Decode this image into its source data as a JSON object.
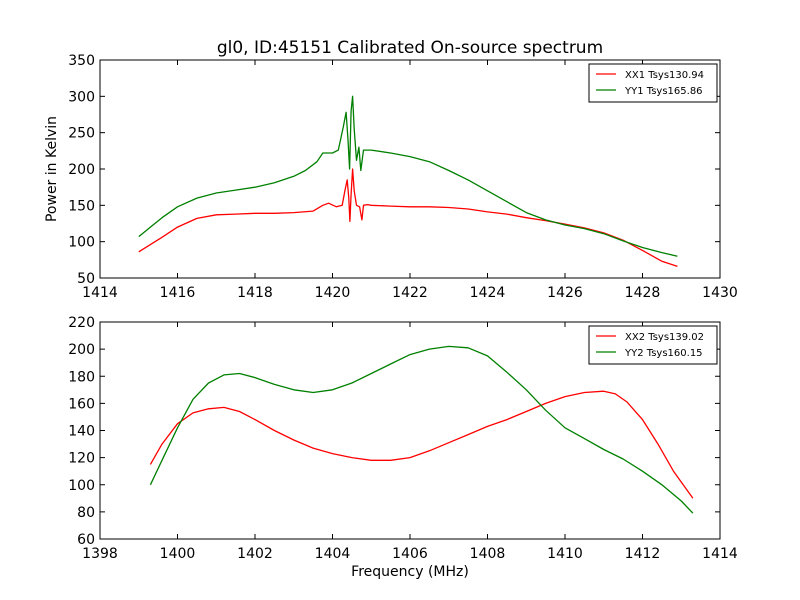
{
  "figure": {
    "title": "gl0, ID:45151 Calibrated On-source spectrum",
    "xlabel": "Frequency (MHz)",
    "ylabel": "Power in Kelvin"
  },
  "chart_data": [
    {
      "type": "line",
      "xlim": [
        1414,
        1430
      ],
      "ylim": [
        50,
        350
      ],
      "xticks": [
        1414,
        1416,
        1418,
        1420,
        1422,
        1424,
        1426,
        1428,
        1430
      ],
      "yticks": [
        50,
        100,
        150,
        200,
        250,
        300,
        350
      ],
      "legend_position": "top-right",
      "series": [
        {
          "name": "XX1 Tsys130.94",
          "color": "#ff0000",
          "x": [
            1415.0,
            1415.3,
            1415.6,
            1416.0,
            1416.5,
            1417.0,
            1417.5,
            1418.0,
            1418.5,
            1419.0,
            1419.5,
            1419.75,
            1419.9,
            1420.1,
            1420.25,
            1420.32,
            1420.38,
            1420.42,
            1420.45,
            1420.48,
            1420.52,
            1420.56,
            1420.62,
            1420.7,
            1420.76,
            1420.8,
            1420.9,
            1421.0,
            1421.5,
            1422.0,
            1422.5,
            1423.0,
            1423.5,
            1424.0,
            1424.5,
            1425.0,
            1425.5,
            1426.0,
            1426.5,
            1427.0,
            1427.5,
            1428.0,
            1428.5,
            1428.9
          ],
          "y": [
            86,
            96,
            106,
            120,
            132,
            137,
            138,
            139,
            139,
            140,
            142,
            150,
            153,
            148,
            150,
            170,
            185,
            160,
            128,
            165,
            200,
            170,
            150,
            148,
            130,
            150,
            151,
            150,
            149,
            148,
            148,
            147,
            145,
            141,
            138,
            133,
            129,
            124,
            119,
            112,
            102,
            88,
            73,
            66
          ]
        },
        {
          "name": "YY1 Tsys165.86",
          "color": "#008000",
          "x": [
            1415.0,
            1415.3,
            1415.6,
            1416.0,
            1416.5,
            1417.0,
            1417.5,
            1418.0,
            1418.5,
            1419.0,
            1419.3,
            1419.6,
            1419.75,
            1420.0,
            1420.15,
            1420.28,
            1420.35,
            1420.4,
            1420.44,
            1420.48,
            1420.52,
            1420.56,
            1420.62,
            1420.68,
            1420.73,
            1420.8,
            1421.0,
            1421.5,
            1422.0,
            1422.5,
            1423.0,
            1423.5,
            1424.0,
            1424.5,
            1425.0,
            1425.5,
            1426.0,
            1426.5,
            1427.0,
            1427.5,
            1428.0,
            1428.5,
            1428.9
          ],
          "y": [
            107,
            120,
            133,
            148,
            160,
            167,
            171,
            175,
            181,
            190,
            198,
            210,
            222,
            222,
            226,
            258,
            278,
            240,
            200,
            280,
            300,
            255,
            212,
            230,
            198,
            226,
            226,
            222,
            217,
            210,
            198,
            185,
            170,
            155,
            140,
            130,
            123,
            118,
            111,
            101,
            92,
            85,
            80
          ]
        }
      ]
    },
    {
      "type": "line",
      "xlim": [
        1398,
        1414
      ],
      "ylim": [
        60,
        220
      ],
      "xticks": [
        1398,
        1400,
        1402,
        1404,
        1406,
        1408,
        1410,
        1412,
        1414
      ],
      "yticks": [
        60,
        80,
        100,
        120,
        140,
        160,
        180,
        200,
        220
      ],
      "legend_position": "top-right",
      "series": [
        {
          "name": "XX2 Tsys139.02",
          "color": "#ff0000",
          "x": [
            1399.3,
            1399.6,
            1400.0,
            1400.4,
            1400.8,
            1401.2,
            1401.6,
            1402.0,
            1402.5,
            1403.0,
            1403.5,
            1404.0,
            1404.5,
            1405.0,
            1405.5,
            1406.0,
            1406.5,
            1407.0,
            1407.5,
            1408.0,
            1408.5,
            1409.0,
            1409.5,
            1410.0,
            1410.5,
            1411.0,
            1411.3,
            1411.6,
            1412.0,
            1412.4,
            1412.8,
            1413.3
          ],
          "y": [
            115,
            130,
            145,
            153,
            156,
            157,
            154,
            148,
            140,
            133,
            127,
            123,
            120,
            118,
            118,
            120,
            125,
            131,
            137,
            143,
            148,
            154,
            160,
            165,
            168,
            169,
            167,
            161,
            148,
            130,
            110,
            90
          ]
        },
        {
          "name": "YY2 Tsys160.15",
          "color": "#008000",
          "x": [
            1399.3,
            1399.6,
            1400.0,
            1400.4,
            1400.8,
            1401.2,
            1401.6,
            1402.0,
            1402.5,
            1403.0,
            1403.5,
            1404.0,
            1404.5,
            1405.0,
            1405.5,
            1406.0,
            1406.5,
            1407.0,
            1407.5,
            1408.0,
            1408.5,
            1409.0,
            1409.5,
            1410.0,
            1410.5,
            1411.0,
            1411.5,
            1412.0,
            1412.5,
            1413.0,
            1413.3
          ],
          "y": [
            100,
            118,
            142,
            163,
            175,
            181,
            182,
            179,
            174,
            170,
            168,
            170,
            175,
            182,
            189,
            196,
            200,
            202,
            201,
            195,
            183,
            170,
            155,
            142,
            134,
            126,
            119,
            110,
            100,
            88,
            79
          ]
        }
      ]
    }
  ]
}
